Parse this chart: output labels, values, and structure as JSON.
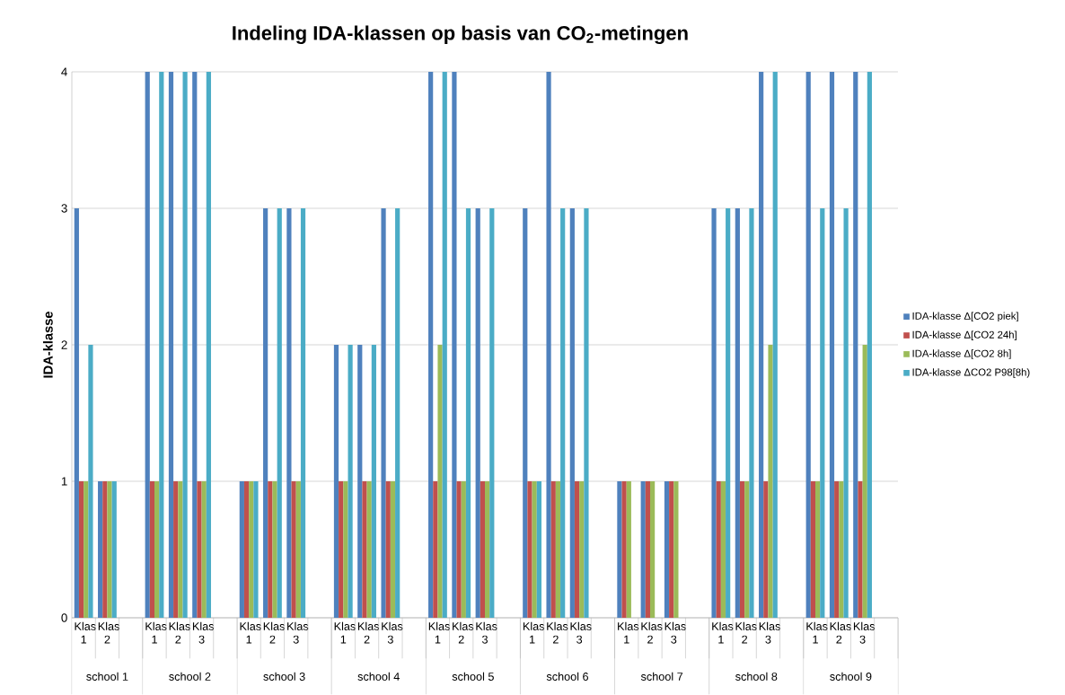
{
  "chart_data": {
    "type": "bar",
    "title": "Indeling IDA-klassen op basis van CO$_{2}$-metingen",
    "ylabel": "IDA-klasse",
    "categories": [
      "Klas 1",
      "Klas 2",
      null,
      "Klas 1",
      "Klas 2",
      "Klas 3",
      null,
      "Klas 1",
      "Klas 2",
      "Klas 3",
      null,
      "Klas 1",
      "Klas 2",
      "Klas 3",
      null,
      "Klas 1",
      "Klas 2",
      "Klas 3",
      null,
      "Klas 1",
      "Klas 2",
      "Klas 3",
      null,
      "Klas 1",
      "Klas 2",
      "Klas 3",
      null,
      "Klas 1",
      "Klas 2",
      "Klas 3",
      null,
      "Klas 1",
      "Klas 2",
      "Klas 3",
      null
    ],
    "series": [
      {
        "name": "IDA-klasse Δ[CO2 piek]",
        "color": "#4f81bd",
        "values": [
          3,
          1,
          null,
          4,
          4,
          4,
          null,
          1,
          3,
          3,
          null,
          2,
          2,
          3,
          null,
          4,
          4,
          3,
          null,
          3,
          4,
          3,
          null,
          1,
          1,
          1,
          null,
          3,
          3,
          4,
          null,
          4,
          4,
          4,
          null
        ]
      },
      {
        "name": "IDA-klasse Δ[CO2 24h]",
        "color": "#c0504d",
        "values": [
          1,
          1,
          null,
          1,
          1,
          1,
          null,
          1,
          1,
          1,
          null,
          1,
          1,
          1,
          null,
          1,
          1,
          1,
          null,
          1,
          1,
          1,
          null,
          1,
          1,
          1,
          null,
          1,
          1,
          1,
          null,
          1,
          1,
          1,
          null
        ]
      },
      {
        "name": "IDA-klasse Δ[CO2 8h]",
        "color": "#9bbb59",
        "values": [
          1,
          1,
          null,
          1,
          1,
          1,
          null,
          1,
          1,
          1,
          null,
          1,
          1,
          1,
          null,
          2,
          1,
          1,
          null,
          1,
          1,
          1,
          null,
          1,
          1,
          1,
          null,
          1,
          1,
          2,
          null,
          1,
          1,
          2,
          null
        ]
      },
      {
        "name": "IDA-klasse ΔCO2 P98[8h)",
        "color": "#4bacc6",
        "values": [
          2,
          1,
          null,
          4,
          4,
          4,
          null,
          1,
          3,
          3,
          null,
          2,
          2,
          3,
          null,
          4,
          3,
          3,
          null,
          1,
          3,
          3,
          null,
          null,
          null,
          null,
          null,
          3,
          3,
          4,
          null,
          3,
          3,
          4,
          null
        ]
      }
    ],
    "annotations": [
      "school 1",
      "school 2",
      "school 3",
      "school 4",
      "school 5",
      "school 6",
      "school 7",
      "school 8",
      "school 9"
    ],
    "ylim": [
      0,
      4
    ],
    "yticks": [
      0,
      1,
      2,
      3,
      4
    ],
    "grid": "y",
    "legend": "right"
  }
}
